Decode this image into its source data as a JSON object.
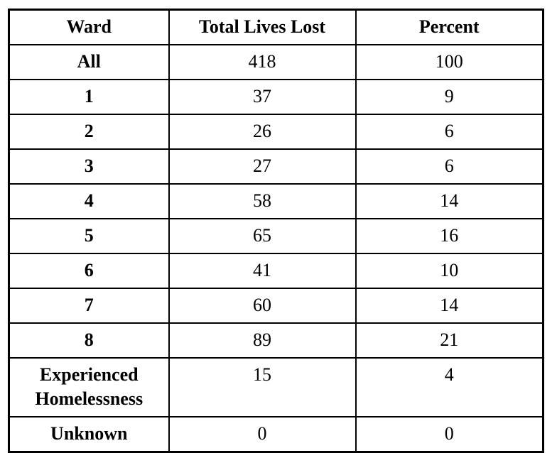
{
  "colors": {
    "border": "#000000",
    "text": "#000000",
    "background": "#ffffff"
  },
  "table": {
    "columns": [
      {
        "key": "ward",
        "label": "Ward"
      },
      {
        "key": "total",
        "label": "Total Lives Lost"
      },
      {
        "key": "percent",
        "label": "Percent"
      }
    ],
    "rows": [
      {
        "ward": "All",
        "total": "418",
        "percent": "100"
      },
      {
        "ward": "1",
        "total": "37",
        "percent": "9"
      },
      {
        "ward": "2",
        "total": "26",
        "percent": "6"
      },
      {
        "ward": "3",
        "total": "27",
        "percent": "6"
      },
      {
        "ward": "4",
        "total": "58",
        "percent": "14"
      },
      {
        "ward": "5",
        "total": "65",
        "percent": "16"
      },
      {
        "ward": "6",
        "total": "41",
        "percent": "10"
      },
      {
        "ward": "7",
        "total": "60",
        "percent": "14"
      },
      {
        "ward": "8",
        "total": "89",
        "percent": "21"
      },
      {
        "ward": "Experienced Homelessness",
        "total": "15",
        "percent": "4"
      },
      {
        "ward": "Unknown",
        "total": "0",
        "percent": "0"
      }
    ]
  },
  "chart_data": {
    "type": "table",
    "title": "",
    "columns": [
      "Ward",
      "Total Lives Lost",
      "Percent"
    ],
    "categories": [
      "All",
      "1",
      "2",
      "3",
      "4",
      "5",
      "6",
      "7",
      "8",
      "Experienced Homelessness",
      "Unknown"
    ],
    "series": [
      {
        "name": "Total Lives Lost",
        "values": [
          418,
          37,
          26,
          27,
          58,
          65,
          41,
          60,
          89,
          15,
          0
        ]
      },
      {
        "name": "Percent",
        "values": [
          100,
          9,
          6,
          6,
          14,
          16,
          10,
          14,
          21,
          4,
          0
        ]
      }
    ]
  }
}
